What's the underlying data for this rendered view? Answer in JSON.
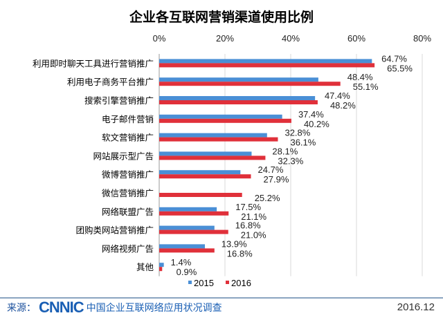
{
  "chart_data": {
    "type": "bar",
    "orientation": "horizontal",
    "title": "企业各互联网营销渠道使用比例",
    "categories": [
      "利用即时聊天工具进行营销推广",
      "利用电子商务平台推广",
      "搜索引擎营销推广",
      "电子邮件营销",
      "软文营销推广",
      "网站展示型广告",
      "微博营销推广",
      "微信营销推广",
      "网络联盟广告",
      "团购类网站营销推广",
      "网络视频广告",
      "其他"
    ],
    "series": [
      {
        "name": "2015",
        "color": "#4a8fd6",
        "values": [
          64.7,
          48.4,
          47.4,
          37.4,
          32.8,
          28.1,
          24.7,
          null,
          17.5,
          16.8,
          13.9,
          1.4
        ]
      },
      {
        "name": "2016",
        "color": "#e0303a",
        "values": [
          65.5,
          55.1,
          48.2,
          40.2,
          36.1,
          32.3,
          27.9,
          25.2,
          21.1,
          21.0,
          16.8,
          0.9
        ]
      }
    ],
    "xlim": [
      0,
      80
    ],
    "xticks": [
      "0%",
      "20%",
      "40%",
      "60%",
      "80%"
    ],
    "axis_position": "top",
    "grid": true,
    "legend": "bottom",
    "value_format": "percent-1dp"
  },
  "footer": {
    "source_label": "来源：",
    "logo": "CNNIC",
    "source_text": "中国企业互联网络应用状况调查",
    "date": "2016.12"
  }
}
